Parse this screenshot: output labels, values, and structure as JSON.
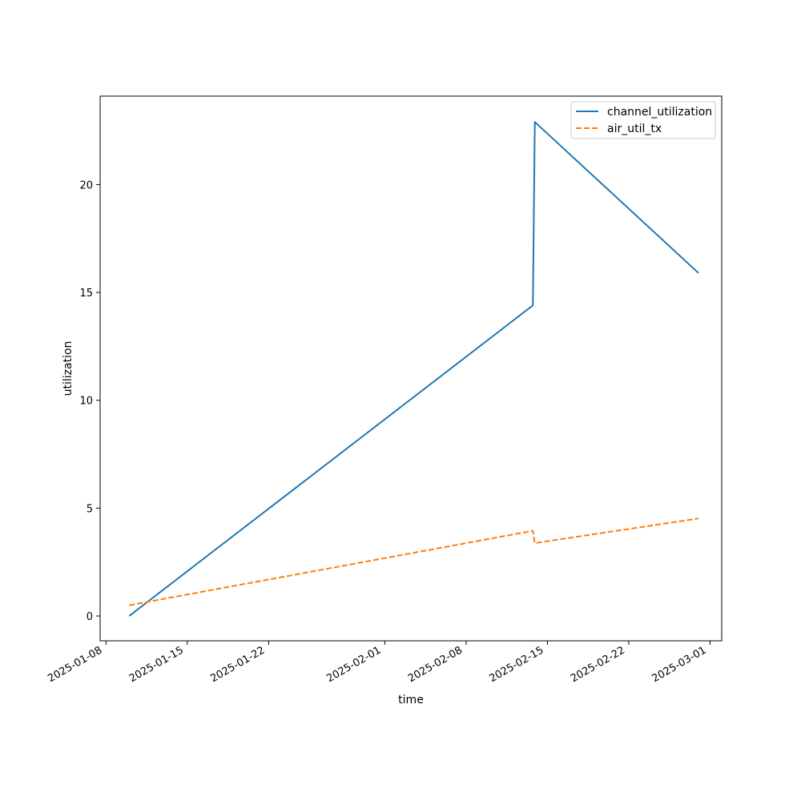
{
  "chart_data": {
    "type": "line",
    "title": "",
    "xlabel": "time",
    "ylabel": "utilization",
    "x_axis_type": "date",
    "xlim": [
      "2025-01-07T12:00",
      "2025-03-02T00:00"
    ],
    "ylim": [
      -1.15,
      24.1
    ],
    "x_ticks": [
      {
        "date": "2025-01-08",
        "label": "2025-01-08"
      },
      {
        "date": "2025-01-15",
        "label": "2025-01-15"
      },
      {
        "date": "2025-01-22",
        "label": "2025-01-22"
      },
      {
        "date": "2025-02-01",
        "label": "2025-02-01"
      },
      {
        "date": "2025-02-08",
        "label": "2025-02-08"
      },
      {
        "date": "2025-02-15",
        "label": "2025-02-15"
      },
      {
        "date": "2025-02-22",
        "label": "2025-02-22"
      },
      {
        "date": "2025-03-01",
        "label": "2025-03-01"
      }
    ],
    "y_ticks": [
      0,
      5,
      10,
      15,
      20
    ],
    "grid": false,
    "legend_position": "top-right",
    "series": [
      {
        "name": "channel_utilization",
        "color": "#1f77b4",
        "style": "solid",
        "points": [
          {
            "x": "2025-01-10T00:00",
            "y": 0.0
          },
          {
            "x": "2025-02-13T18:00",
            "y": 14.4
          },
          {
            "x": "2025-02-13T22:00",
            "y": 22.9
          },
          {
            "x": "2025-02-28T00:00",
            "y": 15.9
          }
        ]
      },
      {
        "name": "air_util_tx",
        "color": "#ff7f0e",
        "style": "dashed",
        "points": [
          {
            "x": "2025-01-10T00:00",
            "y": 0.5
          },
          {
            "x": "2025-02-13T18:00",
            "y": 3.95
          },
          {
            "x": "2025-02-13T22:00",
            "y": 3.38
          },
          {
            "x": "2025-02-28T00:00",
            "y": 4.52
          }
        ]
      }
    ]
  }
}
